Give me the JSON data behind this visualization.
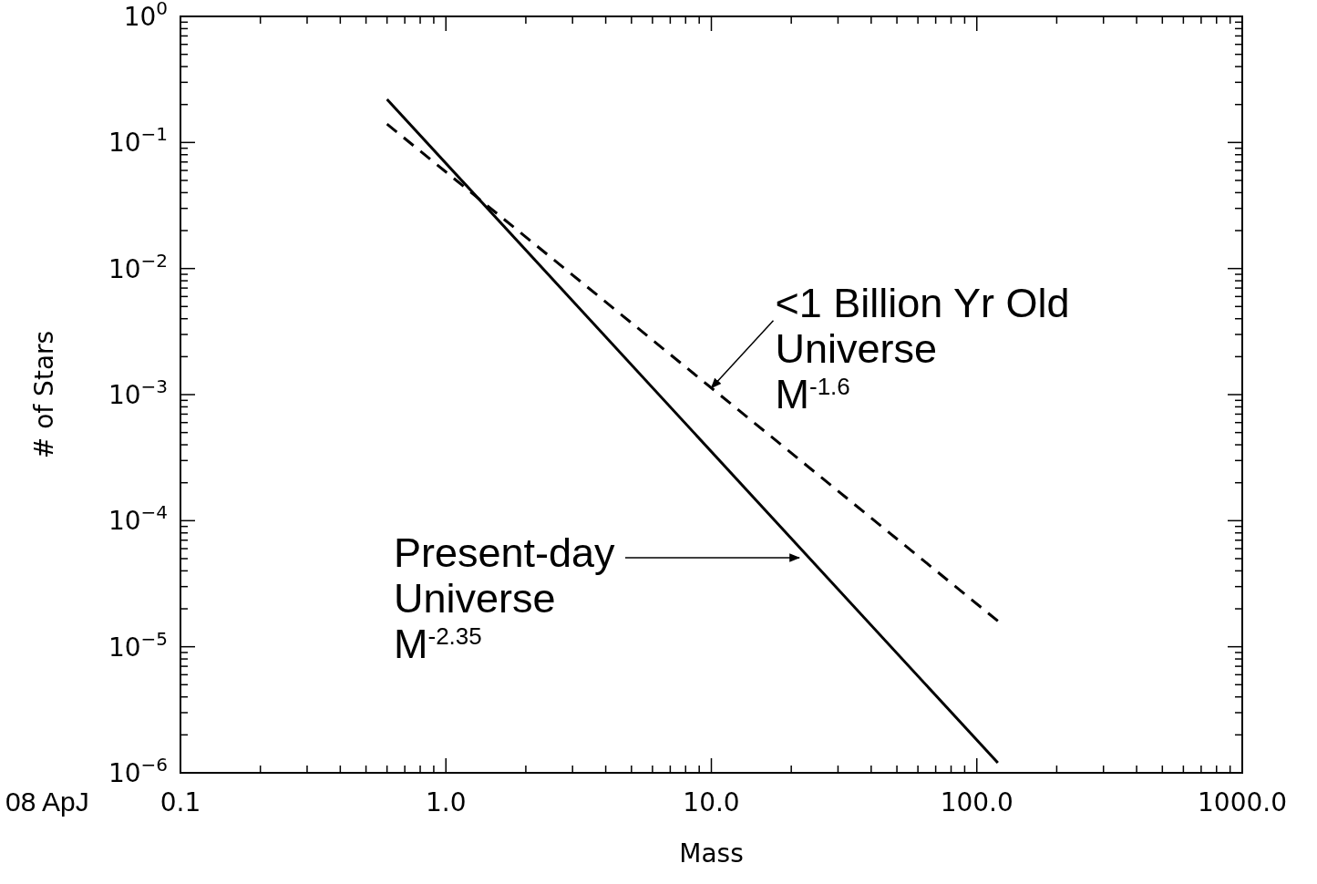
{
  "chart_data": {
    "type": "line",
    "xlabel": "Mass",
    "ylabel": "# of Stars",
    "log": "xy",
    "grid": false,
    "x": [
      0.6,
      120
    ],
    "xlim": [
      0.1,
      1000
    ],
    "ylim": [
      1e-06,
      1
    ],
    "xticks": [
      {
        "value": 0.1,
        "label": "0.1"
      },
      {
        "value": 1,
        "label": "1.0"
      },
      {
        "value": 10,
        "label": "10.0"
      },
      {
        "value": 100,
        "label": "100.0"
      },
      {
        "value": 1000,
        "label": "1000.0"
      },
      {
        "value": 0.2,
        "label": null
      },
      {
        "value": 0.3,
        "label": null
      },
      {
        "value": 0.4,
        "label": null
      },
      {
        "value": 0.5,
        "label": null
      },
      {
        "value": 0.6,
        "label": null
      },
      {
        "value": 0.7,
        "label": null
      },
      {
        "value": 0.8,
        "label": null
      },
      {
        "value": 0.9,
        "label": null
      },
      {
        "value": 2,
        "label": null
      },
      {
        "value": 3,
        "label": null
      },
      {
        "value": 4,
        "label": null
      },
      {
        "value": 5,
        "label": null
      },
      {
        "value": 6,
        "label": null
      },
      {
        "value": 7,
        "label": null
      },
      {
        "value": 8,
        "label": null
      },
      {
        "value": 9,
        "label": null
      },
      {
        "value": 20,
        "label": null
      },
      {
        "value": 30,
        "label": null
      },
      {
        "value": 40,
        "label": null
      },
      {
        "value": 50,
        "label": null
      },
      {
        "value": 60,
        "label": null
      },
      {
        "value": 70,
        "label": null
      },
      {
        "value": 80,
        "label": null
      },
      {
        "value": 90,
        "label": null
      },
      {
        "value": 200,
        "label": null
      },
      {
        "value": 300,
        "label": null
      },
      {
        "value": 400,
        "label": null
      },
      {
        "value": 500,
        "label": null
      },
      {
        "value": 600,
        "label": null
      },
      {
        "value": 700,
        "label": null
      },
      {
        "value": 800,
        "label": null
      },
      {
        "value": 900,
        "label": null
      }
    ],
    "yticks": [
      {
        "value": 1e-06,
        "label": "10$^{−6}$"
      },
      {
        "value": 1e-05,
        "label": "10$^{−5}$"
      },
      {
        "value": 0.0001,
        "label": "10$^{−4}$"
      },
      {
        "value": 0.001,
        "label": "10$^{−3}$"
      },
      {
        "value": 0.01,
        "label": "10$^{−2}$"
      },
      {
        "value": 0.1,
        "label": "10$^{−1}$"
      },
      {
        "value": 1,
        "label": "10$^{0}$"
      },
      {
        "value": 2e-06,
        "label": null
      },
      {
        "value": 3e-06,
        "label": null
      },
      {
        "value": 4e-06,
        "label": null
      },
      {
        "value": 5e-06,
        "label": null
      },
      {
        "value": 6e-06,
        "label": null
      },
      {
        "value": 7e-06,
        "label": null
      },
      {
        "value": 8e-06,
        "label": null
      },
      {
        "value": 9e-06,
        "label": null
      },
      {
        "value": 2e-05,
        "label": null
      },
      {
        "value": 3e-05,
        "label": null
      },
      {
        "value": 4e-05,
        "label": null
      },
      {
        "value": 5e-05,
        "label": null
      },
      {
        "value": 6e-05,
        "label": null
      },
      {
        "value": 7e-05,
        "label": null
      },
      {
        "value": 8e-05,
        "label": null
      },
      {
        "value": 9e-05,
        "label": null
      },
      {
        "value": 0.0002,
        "label": null
      },
      {
        "value": 0.0003,
        "label": null
      },
      {
        "value": 0.0004,
        "label": null
      },
      {
        "value": 0.0005,
        "label": null
      },
      {
        "value": 0.0006,
        "label": null
      },
      {
        "value": 0.0007,
        "label": null
      },
      {
        "value": 0.0008,
        "label": null
      },
      {
        "value": 0.0009,
        "label": null
      },
      {
        "value": 0.002,
        "label": null
      },
      {
        "value": 0.003,
        "label": null
      },
      {
        "value": 0.004,
        "label": null
      },
      {
        "value": 0.005,
        "label": null
      },
      {
        "value": 0.006,
        "label": null
      },
      {
        "value": 0.007,
        "label": null
      },
      {
        "value": 0.008,
        "label": null
      },
      {
        "value": 0.009,
        "label": null
      },
      {
        "value": 0.02,
        "label": null
      },
      {
        "value": 0.03,
        "label": null
      },
      {
        "value": 0.04,
        "label": null
      },
      {
        "value": 0.05,
        "label": null
      },
      {
        "value": 0.06,
        "label": null
      },
      {
        "value": 0.07,
        "label": null
      },
      {
        "value": 0.08,
        "label": null
      },
      {
        "value": 0.09,
        "label": null
      },
      {
        "value": 0.2,
        "label": null
      },
      {
        "value": 0.3,
        "label": null
      },
      {
        "value": 0.4,
        "label": null
      },
      {
        "value": 0.5,
        "label": null
      },
      {
        "value": 0.6,
        "label": null
      },
      {
        "value": 0.7,
        "label": null
      },
      {
        "value": 0.8,
        "label": null
      },
      {
        "value": 0.9,
        "label": null
      }
    ],
    "series": [
      {
        "color": "#000000",
        "line_style": "solid",
        "values": [
          0.22,
          1.2e-06
        ]
      },
      {
        "color": "#000000",
        "line_style": "dashed",
        "values": [
          0.14,
          1.6e-05
        ]
      }
    ],
    "annotations": [
      {
        "text": "<1 Billion Yr Old\nUniverse\nM$^{-1.6}$",
        "x": 10,
        "y": 0.00113
      },
      "Present-day\nUniverse\nM$^{-2.35}$",
      "08 ApJ"
    ]
  }
}
